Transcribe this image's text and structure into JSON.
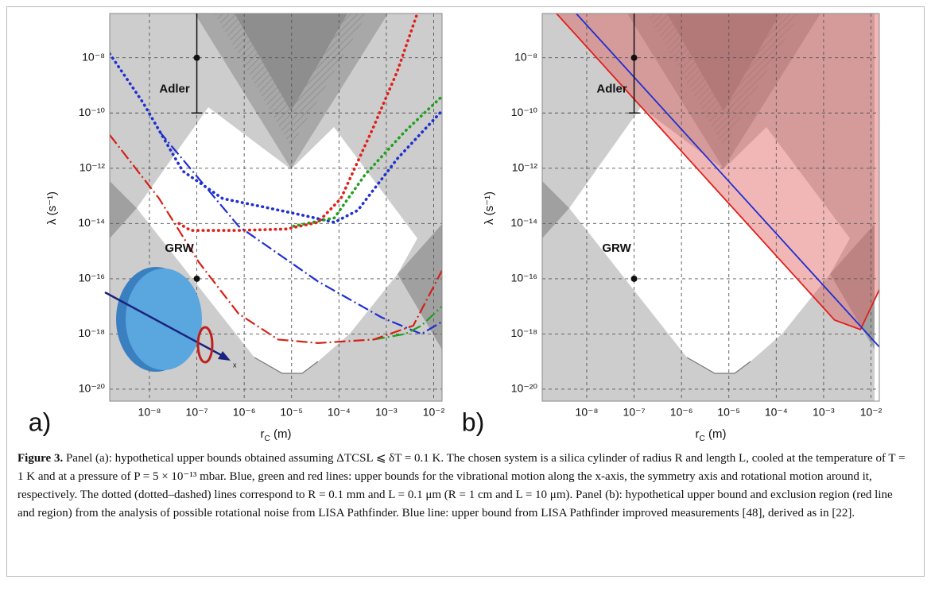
{
  "chart_data": [
    {
      "type": "line",
      "panel_label": "a)",
      "xlabel_parts": [
        "r",
        "C",
        " (m)"
      ],
      "ylabel": "λ (s⁻¹)",
      "log_x": true,
      "log_y": true,
      "grid": true,
      "xlim": [
        1.45e-09,
        0.015
      ],
      "ylim": [
        3.7e-21,
        4e-07
      ],
      "xticks": [
        {
          "value": 1e-08,
          "label": "10⁻⁸"
        },
        {
          "value": 1e-07,
          "label": "10⁻⁷"
        },
        {
          "value": 1e-06,
          "label": "10⁻⁶"
        },
        {
          "value": 1e-05,
          "label": "10⁻⁵"
        },
        {
          "value": 0.0001,
          "label": "10⁻⁴"
        },
        {
          "value": 0.001,
          "label": "10⁻³"
        },
        {
          "value": 0.01,
          "label": "10⁻²"
        }
      ],
      "yticks": [
        {
          "value": 1e-08,
          "label": "10⁻⁸"
        },
        {
          "value": 1e-10,
          "label": "10⁻¹⁰"
        },
        {
          "value": 1e-12,
          "label": "10⁻¹²"
        },
        {
          "value": 1e-14,
          "label": "10⁻¹⁴"
        },
        {
          "value": 1e-16,
          "label": "10⁻¹⁶"
        },
        {
          "value": 1e-18,
          "label": "10⁻¹⁸"
        },
        {
          "value": 1e-20,
          "label": "10⁻²⁰"
        }
      ],
      "series": [
        {
          "color": "#1f2fd0",
          "style": "dotted",
          "x": [
            1.45e-09,
            7.4e-09,
            5e-08,
            3.5e-07,
            2.5e-06,
            1.7e-05,
            8e-05,
            0.00025,
            0.0017,
            0.015
          ],
          "values": [
            1.4e-08,
            2.3e-10,
            8e-13,
            8e-14,
            4e-14,
            2e-14,
            1.1e-14,
            3e-14,
            2.2e-12,
            1.2e-10
          ]
        },
        {
          "color": "#1fa01f",
          "style": "dotted",
          "x": [
            1.1e-05,
            8e-05,
            0.00036,
            0.0025,
            0.015
          ],
          "values": [
            8e-15,
            1.6e-14,
            6e-13,
            2.2e-11,
            4e-10
          ]
        },
        {
          "color": "#e0201a",
          "style": "dotted",
          "x": [
            4.2e-08,
            7.4e-08,
            7.6e-07,
            7.8e-06,
            3.6e-05,
            0.00011,
            0.00054,
            0.0017,
            0.0045
          ],
          "values": [
            1e-14,
            5.6e-15,
            5.6e-15,
            6.3e-15,
            1.1e-14,
            8e-14,
            3.2e-11,
            3.2e-09,
            4e-07
          ]
        },
        {
          "color": "#1f2fd0",
          "style": "dashdot",
          "x": [
            1.6e-08,
            7.6e-07,
            3.6e-05,
            0.00079,
            0.0055,
            0.015
          ],
          "values": [
            2.2e-11,
            8e-15,
            8e-17,
            4e-18,
            1e-18,
            2.8e-18
          ]
        },
        {
          "color": "#1fa01f",
          "style": "dashdot",
          "x": [
            0.00054,
            0.0025,
            0.0055,
            0.015
          ],
          "values": [
            6.3e-19,
            1e-18,
            2e-18,
            1e-17
          ]
        },
        {
          "color": "#d42016",
          "style": "dashdot",
          "x": [
            1.45e-09,
            1.6e-08,
            1.1e-07,
            7.6e-07,
            5.2e-06,
            3.6e-05,
            0.00054,
            0.0037,
            0.015
          ],
          "values": [
            1.6e-11,
            8e-14,
            4e-16,
            5.4e-18,
            6.3e-19,
            4.7e-19,
            6.3e-19,
            2e-18,
            2e-16
          ]
        }
      ],
      "points": [
        {
          "label": "Adler",
          "x": 1e-07,
          "y": 1e-08,
          "y_low": 1e-10
        },
        {
          "label": "GRW",
          "x": 1e-07,
          "y": 1e-16
        }
      ],
      "illustration_label": "x"
    },
    {
      "type": "line",
      "panel_label": "b)",
      "xlabel_parts": [
        "r",
        "C",
        " (m)"
      ],
      "ylabel": "λ (s⁻¹)",
      "log_x": true,
      "log_y": true,
      "grid": true,
      "xlim": [
        1.15e-09,
        0.015
      ],
      "ylim": [
        3.7e-21,
        4e-07
      ],
      "xticks": [
        {
          "value": 1e-08,
          "label": "10⁻⁸"
        },
        {
          "value": 1e-07,
          "label": "10⁻⁷"
        },
        {
          "value": 1e-06,
          "label": "10⁻⁶"
        },
        {
          "value": 1e-05,
          "label": "10⁻⁵"
        },
        {
          "value": 0.0001,
          "label": "10⁻⁴"
        },
        {
          "value": 0.001,
          "label": "10⁻³"
        },
        {
          "value": 0.01,
          "label": "10⁻²"
        }
      ],
      "yticks": [
        {
          "value": 1e-08,
          "label": "10⁻⁸"
        },
        {
          "value": 1e-10,
          "label": "10⁻¹⁰"
        },
        {
          "value": 1e-12,
          "label": "10⁻¹²"
        },
        {
          "value": 1e-14,
          "label": "10⁻¹⁴"
        },
        {
          "value": 1e-16,
          "label": "10⁻¹⁶"
        },
        {
          "value": 1e-18,
          "label": "10⁻¹⁸"
        },
        {
          "value": 1e-20,
          "label": "10⁻²⁰"
        }
      ],
      "series": [
        {
          "color": "#e0201a",
          "style": "solid",
          "fill_above": true,
          "fill_color": "#e06060",
          "x": [
            2.3e-09,
            0.0017,
            0.006,
            0.015
          ],
          "values": [
            4e-07,
            3.2e-18,
            1.45e-18,
            4e-17
          ]
        },
        {
          "color": "#1f2fd0",
          "style": "solid",
          "x": [
            6e-09,
            0.015
          ],
          "values": [
            4e-07,
            3.4e-19
          ]
        }
      ],
      "points": [
        {
          "label": "Adler",
          "x": 1e-07,
          "y": 1e-08,
          "y_low": 1e-10
        },
        {
          "label": "GRW",
          "x": 1e-07,
          "y": 1e-16
        }
      ]
    }
  ],
  "caption": {
    "label": "Figure 3.",
    "text": " Panel (a): hypothetical upper bounds obtained assuming ΔTCSL ⩽ δT = 0.1 K. The chosen system is a silica cylinder of radius R and length L, cooled at the temperature of T = 1 K and at a pressure of P = 5 × 10⁻¹³ mbar. Blue, green and red lines: upper bounds for the vibrational motion along the x-axis, the symmetry axis and rotational motion around it, respectively. The dotted (dotted–dashed) lines correspond to R = 0.1 mm and L = 0.1 μm (R = 1 cm and L = 10 μm). Panel (b): hypothetical upper bound and exclusion region (red line and region) from the analysis of possible rotational noise from LISA Pathfinder. Blue line: upper bound from LISA Pathfinder improved measurements [48], derived as in [22]."
  }
}
